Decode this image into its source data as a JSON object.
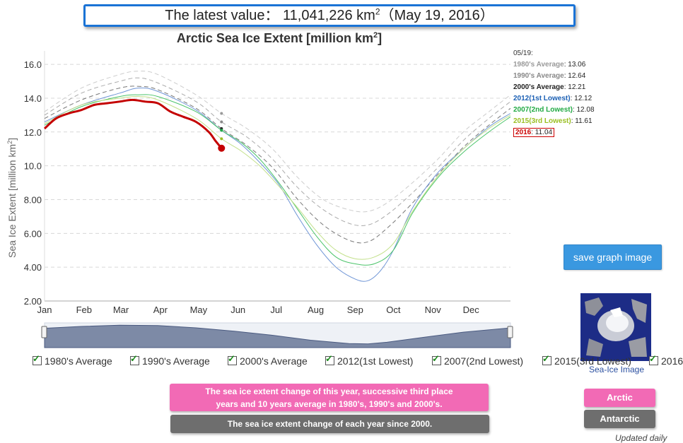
{
  "header": {
    "latest_prefix": "The latest value： 11,041,226 km",
    "latest_sup": "2",
    "latest_suffix": "（May 19, 2016）"
  },
  "chart_data": {
    "type": "line",
    "title": "Arctic Sea Ice Extent [million km",
    "title_sup": "2",
    "title_end": "]",
    "ylabel": "Sea Ice Extent [million km",
    "ylabel_sup": "2",
    "ylabel_end": "]",
    "ylim": [
      2,
      16.8
    ],
    "xlim": [
      1,
      367
    ],
    "yticks": [
      2,
      4,
      6,
      8,
      10,
      12,
      14,
      16
    ],
    "ytick_labels": [
      "2.00",
      "4.00",
      "6.00",
      "8.00",
      "10.0",
      "12.0",
      "14.0",
      "16.0"
    ],
    "months": [
      "Jan",
      "Feb",
      "Mar",
      "Apr",
      "May",
      "Jun",
      "Jul",
      "Aug",
      "Sep",
      "Oct",
      "Nov",
      "Dec"
    ],
    "month_days": [
      1,
      32,
      61,
      92,
      122,
      153,
      183,
      214,
      245,
      275,
      306,
      336
    ],
    "grid": true,
    "legend_date": "05/19:",
    "series": [
      {
        "name": "1980's Average",
        "color": "#cccccc",
        "dash": true,
        "value_label": "13.06",
        "legend_color": "#999999",
        "x": [
          1,
          30,
          60,
          75,
          90,
          120,
          140,
          160,
          180,
          200,
          220,
          240,
          255,
          270,
          290,
          310,
          330,
          350,
          367
        ],
        "y": [
          13.2,
          14.6,
          15.4,
          15.6,
          15.4,
          14.2,
          13.1,
          12.2,
          11.0,
          9.3,
          8.0,
          7.4,
          7.3,
          7.8,
          9.0,
          10.4,
          12.0,
          13.2,
          14.2
        ]
      },
      {
        "name": "1990's Average",
        "color": "#aaaaaa",
        "dash": true,
        "value_label": "12.64",
        "legend_color": "#888888",
        "x": [
          1,
          30,
          60,
          75,
          90,
          120,
          140,
          160,
          180,
          200,
          220,
          240,
          255,
          270,
          290,
          310,
          330,
          350,
          367
        ],
        "y": [
          13.0,
          14.3,
          15.0,
          15.2,
          14.9,
          13.8,
          12.6,
          11.7,
          10.4,
          8.7,
          7.4,
          6.6,
          6.5,
          7.1,
          8.4,
          9.9,
          11.5,
          12.8,
          13.8
        ]
      },
      {
        "name": "2000's Average",
        "color": "#777777",
        "dash": true,
        "value_label": "12.21",
        "legend_color": "#222222",
        "x": [
          1,
          30,
          60,
          75,
          90,
          120,
          140,
          160,
          180,
          200,
          220,
          240,
          255,
          270,
          290,
          310,
          330,
          350,
          367
        ],
        "y": [
          12.8,
          13.9,
          14.6,
          14.7,
          14.5,
          13.4,
          12.2,
          11.2,
          9.9,
          8.0,
          6.5,
          5.6,
          5.5,
          6.3,
          7.8,
          9.5,
          11.1,
          12.4,
          13.4
        ]
      },
      {
        "name": "2012(1st Lowest)",
        "color": "#6f95d6",
        "dash": false,
        "value_label": "12.12",
        "legend_color": "#1a5fb4",
        "x": [
          1,
          30,
          60,
          75,
          90,
          120,
          140,
          155,
          170,
          185,
          200,
          215,
          230,
          245,
          255,
          265,
          275,
          290,
          310,
          330,
          350,
          367
        ],
        "y": [
          12.6,
          13.6,
          14.3,
          14.6,
          14.4,
          13.3,
          12.1,
          11.3,
          10.2,
          8.9,
          7.0,
          5.3,
          4.0,
          3.3,
          3.2,
          3.8,
          5.0,
          7.5,
          9.6,
          11.0,
          12.3,
          13.1
        ]
      },
      {
        "name": "2007(2nd Lowest)",
        "color": "#4bc46a",
        "dash": false,
        "value_label": "12.08",
        "legend_color": "#22aa44",
        "x": [
          1,
          30,
          60,
          75,
          90,
          120,
          140,
          155,
          170,
          185,
          200,
          215,
          230,
          245,
          260,
          275,
          290,
          310,
          330,
          350,
          367
        ],
        "y": [
          12.4,
          13.5,
          14.1,
          14.2,
          14.1,
          13.2,
          12.1,
          11.4,
          10.4,
          9.0,
          7.4,
          5.8,
          4.6,
          4.2,
          4.2,
          5.0,
          7.2,
          9.3,
          10.8,
          12.0,
          12.9
        ]
      },
      {
        "name": "2015(3rd Lowest)",
        "color": "#c2e08a",
        "dash": false,
        "value_label": "11.61",
        "legend_color": "#9abf22",
        "x": [
          1,
          30,
          60,
          75,
          90,
          120,
          140,
          155,
          170,
          185,
          200,
          215,
          230,
          245,
          260,
          275,
          290,
          310,
          330,
          350,
          367
        ],
        "y": [
          12.5,
          13.6,
          14.0,
          14.1,
          13.9,
          12.8,
          11.6,
          10.9,
          10.0,
          8.8,
          7.5,
          6.1,
          5.0,
          4.5,
          4.6,
          5.4,
          7.3,
          9.4,
          11.0,
          12.2,
          13.0
        ]
      },
      {
        "name": "2016",
        "color": "#c40000",
        "dash": false,
        "value_label": "11.04",
        "legend_color": "#cc0000",
        "boxed": true,
        "x": [
          1,
          10,
          20,
          30,
          40,
          50,
          60,
          70,
          80,
          90,
          100,
          110,
          120,
          130,
          135,
          140
        ],
        "y": [
          12.2,
          12.8,
          13.1,
          13.3,
          13.6,
          13.7,
          13.8,
          13.9,
          13.8,
          13.7,
          13.2,
          12.9,
          12.6,
          12.0,
          11.5,
          11.04
        ]
      }
    ],
    "navigator": {
      "x": [
        1,
        30,
        60,
        90,
        120,
        150,
        180,
        210,
        240,
        255,
        270,
        300,
        330,
        367
      ],
      "y": [
        13.4,
        14.3,
        14.9,
        14.7,
        13.6,
        12.0,
        10.0,
        7.6,
        6.0,
        5.8,
        6.6,
        9.1,
        11.5,
        13.6
      ]
    }
  },
  "controls": {
    "save_button": "save graph image",
    "thumbnail_caption": "Sea-Ice Image",
    "series_checkboxes": [
      "1980's Average",
      "1990's Average",
      "2000's Average",
      "2012(1st Lowest)",
      "2007(2nd Lowest)",
      "2015(3rd Lowest)",
      "2016"
    ],
    "this_year_button_line1": "The sea ice extent change of this year, successive third place",
    "this_year_button_line2": "years and 10 years average in 1980's, 1990's and 2000's.",
    "each_year_button": "The sea ice extent change of each year since 2000.",
    "arctic_button": "Arctic",
    "antarctic_button": "Antarctic",
    "updated_note": "Updated daily"
  },
  "colors": {
    "accent_blue": "#3a98e0",
    "pink": "#f26ab5",
    "gray_button": "#6e6e6e",
    "line_2016": "#c40000"
  }
}
